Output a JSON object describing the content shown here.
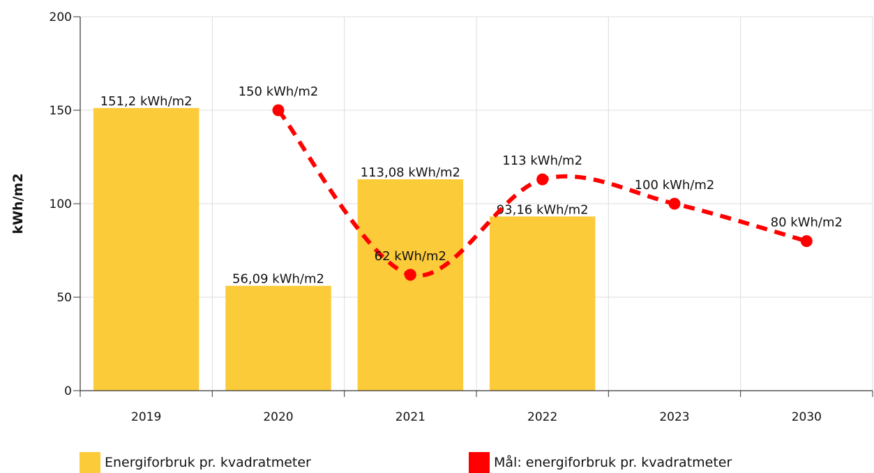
{
  "chart_data": {
    "type": "bar",
    "categories": [
      "2019",
      "2020",
      "2021",
      "2022",
      "2023",
      "2030"
    ],
    "ylabel": "kWh/m2",
    "ylim": [
      0,
      200
    ],
    "yticks": [
      "0",
      "50",
      "100",
      "150",
      "200"
    ],
    "grid": true,
    "legend_position": "bottom",
    "series": [
      {
        "name": "Energiforbruk pr. kvadratmeter",
        "kind": "bar",
        "color": "#FCCB3A",
        "values": [
          151.2,
          56.09,
          113.08,
          93.16,
          null,
          null
        ],
        "labels": [
          "151,2 kWh/m2",
          "56,09 kWh/m2",
          "113,08 kWh/m2",
          "93,16 kWh/m2",
          "",
          ""
        ]
      },
      {
        "name": "Mål: energiforbruk pr. kvadratmeter",
        "kind": "line",
        "style": "dashed-smooth",
        "color": "#FF0000",
        "values": [
          null,
          150,
          62,
          113,
          100,
          80
        ],
        "labels": [
          "",
          "150 kWh/m2",
          "62 kWh/m2",
          "113 kWh/m2",
          "100 kWh/m2",
          "80 kWh/m2"
        ]
      }
    ]
  }
}
